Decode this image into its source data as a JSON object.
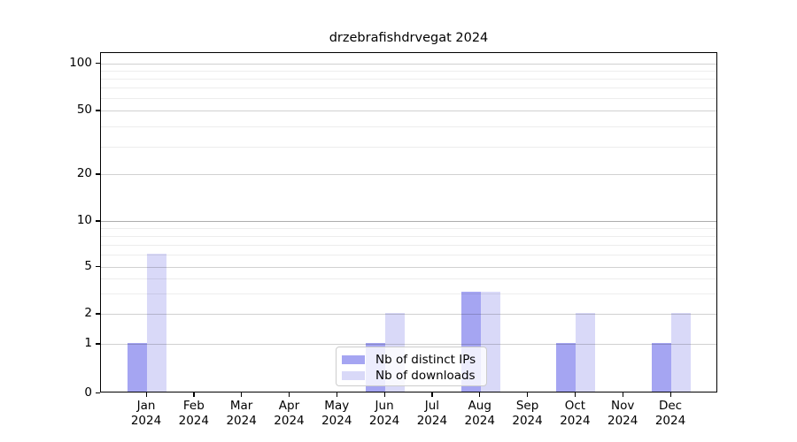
{
  "figure": {
    "title": "drzebrafishdrvegat 2024"
  },
  "chart_data": {
    "type": "bar",
    "title": "drzebrafishdrvegat 2024",
    "x_months": [
      "Jan",
      "Feb",
      "Mar",
      "Apr",
      "May",
      "Jun",
      "Jul",
      "Aug",
      "Sep",
      "Oct",
      "Nov",
      "Dec"
    ],
    "x_year": "2024",
    "series": [
      {
        "key": "distinct-ips",
        "name": "Nb of distinct IPs",
        "color": "#a5a5f2",
        "values": [
          1,
          0,
          0,
          0,
          0,
          1,
          0,
          3,
          0,
          1,
          0,
          1
        ]
      },
      {
        "key": "downloads",
        "name": "Nb of downloads",
        "color": "#d9d9f8",
        "values": [
          6,
          0,
          0,
          0,
          0,
          2,
          0,
          3,
          0,
          2,
          0,
          2
        ]
      }
    ],
    "y_axis": {
      "ticks": [
        0,
        1,
        2,
        5,
        10,
        20,
        50,
        100
      ],
      "minor_ticks": [
        3,
        4,
        6,
        7,
        8,
        9,
        30,
        40,
        60,
        70,
        80,
        90
      ],
      "scale": "log-like (linear 0-1, logarithmic above)",
      "ylim": [
        0,
        115
      ]
    },
    "grid": "horizontal",
    "legend": {
      "position": "bottom-center-inside",
      "entries": [
        "Nb of distinct IPs",
        "Nb of downloads"
      ]
    }
  }
}
